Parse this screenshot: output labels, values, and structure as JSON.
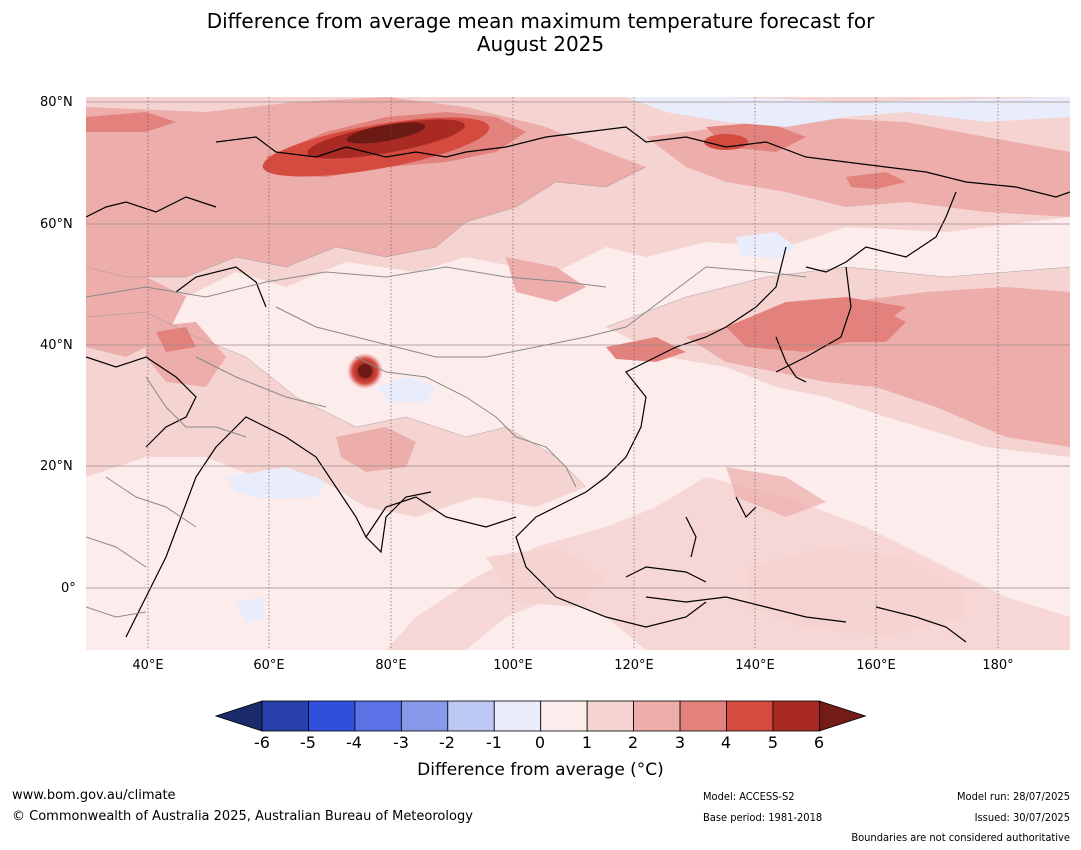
{
  "title_line1": "Difference from average mean maximum temperature forecast for",
  "title_line2": "August 2025",
  "lat_labels": [
    "80°N",
    "60°N",
    "40°N",
    "20°N",
    "0°"
  ],
  "lon_labels": [
    "40°E",
    "60°E",
    "80°E",
    "100°E",
    "120°E",
    "140°E",
    "160°E",
    "180°"
  ],
  "colorbar": {
    "title": "Difference from average (°C)",
    "ticks": [
      "-6",
      "-5",
      "-4",
      "-3",
      "-2",
      "-1",
      "0",
      "1",
      "2",
      "3",
      "4",
      "5",
      "6"
    ],
    "colors": [
      "#1b2a6b",
      "#283ea8",
      "#3050dc",
      "#5c72e6",
      "#8899ea",
      "#bcc7f3",
      "#e8ecfb",
      "#fcecec",
      "#f5d3d1",
      "#ecadab",
      "#e3817c",
      "#d64b40",
      "#a82a22",
      "#741c16"
    ]
  },
  "footer": {
    "url": "www.bom.gov.au/climate",
    "copyright": "© Commonwealth of Australia 2025, Australian Bureau of Meteorology",
    "model": "Model: ACCESS-S2",
    "base_period": "Base period: 1981-2018",
    "model_run": "Model run: 28/07/2025",
    "issued": "Issued: 30/07/2025",
    "boundaries": "Boundaries are not considered authoritative"
  }
}
